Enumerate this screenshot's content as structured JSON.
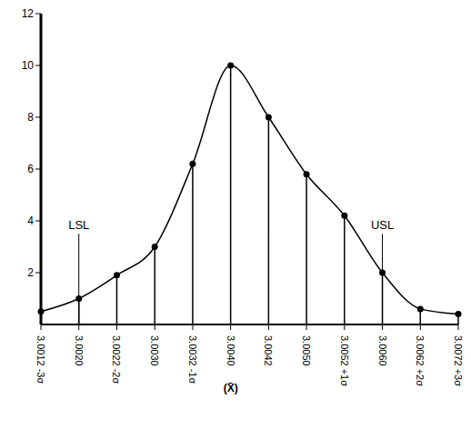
{
  "chart_data": {
    "type": "line",
    "categories": [
      "3.0012 -3σ",
      "3.0020",
      "3.0022 -2σ",
      "3.0030",
      "3.0032 -1σ",
      "3.0040",
      "3.0042",
      "3.0050",
      "3.0052 +1σ",
      "3.0060",
      "3.0062 +2σ",
      "3.0072 +3σ"
    ],
    "values": [
      0.5,
      1,
      1.9,
      3,
      6.2,
      10,
      8,
      5.8,
      4.2,
      2,
      0.6,
      0.4
    ],
    "color": "#000000",
    "ylim": [
      0,
      12
    ],
    "yticks": [
      2,
      4,
      6,
      8,
      10,
      12
    ],
    "grid": false,
    "marker": "circle",
    "line_style": "solid",
    "annotations": [
      {
        "text": "LSL",
        "x": "3.0020",
        "y": 3.5
      },
      {
        "text": "USL",
        "x": "3.0060",
        "y": 3.5
      }
    ],
    "mean_label": {
      "text": "(X̄)",
      "x": "3.0040"
    }
  }
}
